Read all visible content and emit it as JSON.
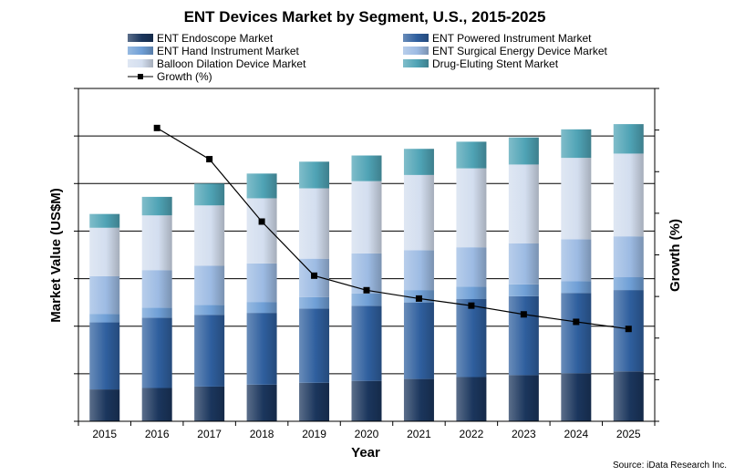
{
  "chart_data": {
    "type": "bar",
    "title": "ENT Devices Market by Segment, U.S., 2015-2025",
    "xlabel": "Year",
    "ylabel": "Market Value (US$M)",
    "y2label": "Growth (%)",
    "categories": [
      "2015",
      "2016",
      "2017",
      "2018",
      "2019",
      "2020",
      "2021",
      "2022",
      "2023",
      "2024",
      "2025"
    ],
    "stacked": true,
    "ylim": [
      0,
      7
    ],
    "y2lim": [
      0,
      8
    ],
    "grid": true,
    "legend_position": "top",
    "series": [
      {
        "name": "ENT Endoscope Market",
        "color": "#1b365d",
        "values": [
          0.67,
          0.7,
          0.73,
          0.77,
          0.81,
          0.85,
          0.89,
          0.93,
          0.97,
          1.01,
          1.05
        ]
      },
      {
        "name": "ENT Powered Instrument Market",
        "color": "#2f5f9e",
        "values": [
          1.41,
          1.48,
          1.51,
          1.51,
          1.56,
          1.58,
          1.61,
          1.64,
          1.66,
          1.69,
          1.71
        ]
      },
      {
        "name": "ENT Hand Instrument Market",
        "color": "#6f9fd6",
        "values": [
          0.18,
          0.21,
          0.21,
          0.23,
          0.24,
          0.26,
          0.26,
          0.26,
          0.25,
          0.25,
          0.27
        ]
      },
      {
        "name": "ENT Surgical Energy Device Market",
        "color": "#9dbbe3",
        "values": [
          0.79,
          0.79,
          0.82,
          0.81,
          0.81,
          0.84,
          0.84,
          0.83,
          0.86,
          0.88,
          0.86
        ]
      },
      {
        "name": "Balloon Dilation Device Market",
        "color": "#d3deef",
        "values": [
          1.02,
          1.15,
          1.27,
          1.37,
          1.48,
          1.52,
          1.58,
          1.66,
          1.66,
          1.71,
          1.74
        ]
      },
      {
        "name": "Drug-Eluting Stent Market",
        "color": "#4fa3b5",
        "values": [
          0.29,
          0.39,
          0.46,
          0.52,
          0.56,
          0.54,
          0.55,
          0.56,
          0.57,
          0.6,
          0.62
        ]
      }
    ],
    "line_series": {
      "name": "Growth (%)",
      "axis": "secondary",
      "color": "#000000",
      "values": [
        null,
        7.05,
        6.3,
        4.8,
        3.5,
        3.15,
        2.95,
        2.78,
        2.57,
        2.39,
        2.22
      ]
    },
    "source": "Source: iData Research Inc."
  }
}
